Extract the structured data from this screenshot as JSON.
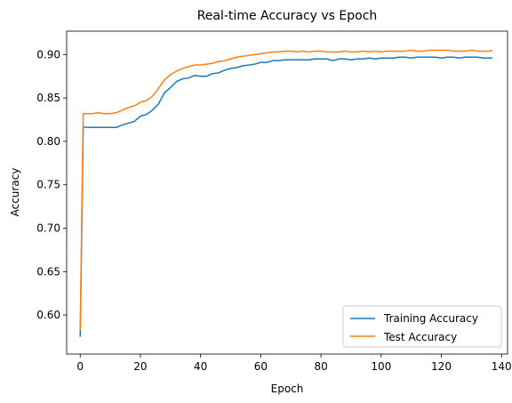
{
  "chart_data": {
    "type": "line",
    "title": "Real-time Accuracy vs Epoch",
    "xlabel": "Epoch",
    "ylabel": "Accuracy",
    "xlim": [
      -4.5,
      142
    ],
    "ylim": [
      0.555,
      0.927
    ],
    "xticks": [
      0,
      20,
      40,
      60,
      80,
      100,
      120,
      140
    ],
    "xtick_labels": [
      "0",
      "20",
      "40",
      "60",
      "80",
      "100",
      "120",
      "140"
    ],
    "yticks": [
      0.6,
      0.65,
      0.7,
      0.75,
      0.8,
      0.85,
      0.9
    ],
    "ytick_labels": [
      "0.60",
      "0.65",
      "0.70",
      "0.75",
      "0.80",
      "0.85",
      "0.90"
    ],
    "grid": false,
    "legend_position": "lower right",
    "series": [
      {
        "name": "Training Accuracy",
        "color": "#1f77b4",
        "x": [
          0,
          1,
          2,
          4,
          6,
          8,
          10,
          12,
          14,
          16,
          18,
          20,
          22,
          24,
          26,
          28,
          30,
          32,
          34,
          36,
          38,
          40,
          42,
          44,
          46,
          48,
          50,
          52,
          54,
          56,
          58,
          60,
          62,
          64,
          66,
          68,
          70,
          72,
          74,
          76,
          78,
          80,
          82,
          84,
          86,
          88,
          90,
          92,
          94,
          96,
          98,
          100,
          102,
          104,
          106,
          108,
          110,
          112,
          114,
          116,
          118,
          120,
          122,
          124,
          126,
          128,
          130,
          132,
          134,
          136,
          137
        ],
        "y": [
          0.575,
          0.817,
          0.816,
          0.816,
          0.816,
          0.816,
          0.816,
          0.816,
          0.819,
          0.821,
          0.823,
          0.829,
          0.831,
          0.836,
          0.843,
          0.856,
          0.862,
          0.869,
          0.872,
          0.873,
          0.876,
          0.875,
          0.875,
          0.878,
          0.879,
          0.882,
          0.884,
          0.885,
          0.887,
          0.888,
          0.889,
          0.891,
          0.891,
          0.893,
          0.893,
          0.894,
          0.894,
          0.894,
          0.894,
          0.894,
          0.895,
          0.895,
          0.895,
          0.893,
          0.895,
          0.895,
          0.894,
          0.895,
          0.895,
          0.896,
          0.895,
          0.896,
          0.896,
          0.896,
          0.897,
          0.897,
          0.896,
          0.897,
          0.897,
          0.897,
          0.897,
          0.896,
          0.897,
          0.897,
          0.896,
          0.897,
          0.897,
          0.897,
          0.896,
          0.896,
          0.896
        ]
      },
      {
        "name": "Test Accuracy",
        "color": "#ff7f0e",
        "x": [
          0,
          1,
          2,
          4,
          6,
          8,
          10,
          12,
          14,
          16,
          18,
          20,
          22,
          24,
          26,
          28,
          30,
          32,
          34,
          36,
          38,
          40,
          42,
          44,
          46,
          48,
          50,
          52,
          54,
          56,
          58,
          60,
          62,
          64,
          66,
          68,
          70,
          72,
          74,
          76,
          78,
          80,
          82,
          84,
          86,
          88,
          90,
          92,
          94,
          96,
          98,
          100,
          102,
          104,
          106,
          108,
          110,
          112,
          114,
          116,
          118,
          120,
          122,
          124,
          126,
          128,
          130,
          132,
          134,
          136,
          137
        ],
        "y": [
          0.583,
          0.832,
          0.832,
          0.832,
          0.833,
          0.832,
          0.832,
          0.833,
          0.836,
          0.839,
          0.841,
          0.845,
          0.847,
          0.852,
          0.861,
          0.871,
          0.877,
          0.881,
          0.884,
          0.886,
          0.888,
          0.888,
          0.889,
          0.89,
          0.892,
          0.893,
          0.895,
          0.897,
          0.898,
          0.899,
          0.9,
          0.901,
          0.902,
          0.903,
          0.903,
          0.904,
          0.904,
          0.903,
          0.904,
          0.903,
          0.904,
          0.904,
          0.903,
          0.903,
          0.903,
          0.904,
          0.903,
          0.903,
          0.904,
          0.903,
          0.904,
          0.903,
          0.904,
          0.904,
          0.904,
          0.904,
          0.905,
          0.904,
          0.904,
          0.905,
          0.905,
          0.905,
          0.905,
          0.904,
          0.904,
          0.904,
          0.905,
          0.904,
          0.904,
          0.904,
          0.905
        ]
      }
    ]
  },
  "colors": {
    "axes": "#000000",
    "legend_border": "#cccccc",
    "background": "#ffffff"
  }
}
